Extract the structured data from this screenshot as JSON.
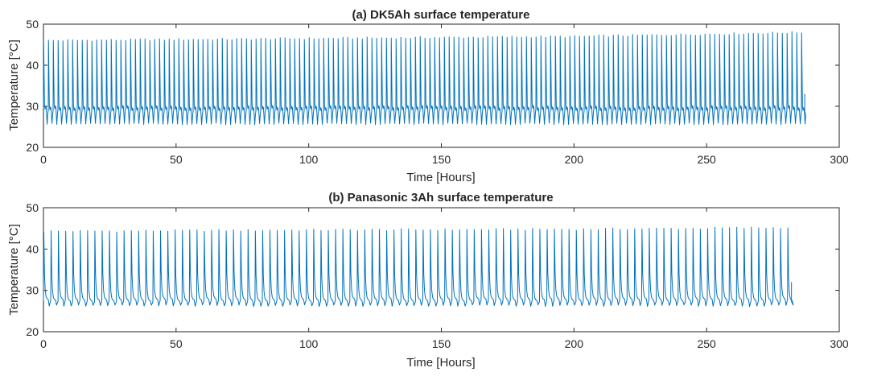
{
  "chart_data": [
    {
      "type": "line",
      "title": "(a) DK5Ah surface temperature",
      "xlabel": "Time [Hours]",
      "ylabel": "Temperature [°C]",
      "xlim": [
        0,
        300
      ],
      "ylim": [
        20,
        50
      ],
      "xticks": [
        0,
        50,
        100,
        150,
        200,
        250,
        300
      ],
      "yticks": [
        20,
        30,
        40,
        50
      ],
      "grid": false,
      "series_color": "#0072BD",
      "series": [
        {
          "x_range": [
            0,
            287
          ],
          "cycle_period_hours": 1.82,
          "peak_temperature": {
            "x": [
              0,
              100,
              200,
              287
            ],
            "y": [
              46.0,
              46.5,
              47.0,
              48.0
            ]
          },
          "trough_temperature": 25.7,
          "plateau_temperature": 29.5,
          "x": [
            0,
            20,
            40,
            60,
            80,
            100,
            120,
            140,
            160,
            180,
            200,
            220,
            240,
            260,
            280,
            287
          ],
          "y_max": [
            46.0,
            46.1,
            46.2,
            46.3,
            46.4,
            46.5,
            46.6,
            46.7,
            46.8,
            46.9,
            47.0,
            47.2,
            47.4,
            47.6,
            47.8,
            48.0
          ],
          "y_min": [
            25.7,
            25.7,
            25.7,
            25.7,
            25.7,
            25.7,
            25.7,
            25.7,
            25.7,
            25.7,
            25.7,
            25.7,
            25.7,
            25.7,
            25.7,
            25.7
          ]
        }
      ]
    },
    {
      "type": "line",
      "title": "(b) Panasonic 3Ah surface temperature",
      "xlabel": "Time [Hours]",
      "ylabel": "Temperature [°C]",
      "xlim": [
        0,
        300
      ],
      "ylim": [
        20,
        50
      ],
      "xticks": [
        0,
        50,
        100,
        150,
        200,
        250,
        300
      ],
      "yticks": [
        20,
        30,
        40,
        50
      ],
      "grid": false,
      "series_color": "#0072BD",
      "series": [
        {
          "x_range": [
            0,
            282
          ],
          "cycle_period_hours": 2.75,
          "peak_temperature": {
            "x": [
              0,
              100,
              200,
              282
            ],
            "y": [
              44.3,
              44.6,
              44.8,
              45.2
            ]
          },
          "trough_temperature": 26.3,
          "plateau_temperature": 27.5,
          "x": [
            0,
            20,
            40,
            60,
            80,
            100,
            120,
            140,
            160,
            180,
            200,
            220,
            240,
            260,
            282
          ],
          "y_max": [
            44.3,
            44.4,
            44.4,
            44.5,
            44.5,
            44.6,
            44.6,
            44.7,
            44.7,
            44.8,
            44.8,
            44.9,
            45.0,
            45.1,
            45.2
          ],
          "y_min": [
            26.3,
            26.3,
            26.3,
            26.3,
            26.3,
            26.3,
            26.3,
            26.3,
            26.3,
            26.3,
            26.3,
            26.3,
            26.3,
            26.3,
            26.3
          ]
        }
      ]
    }
  ]
}
